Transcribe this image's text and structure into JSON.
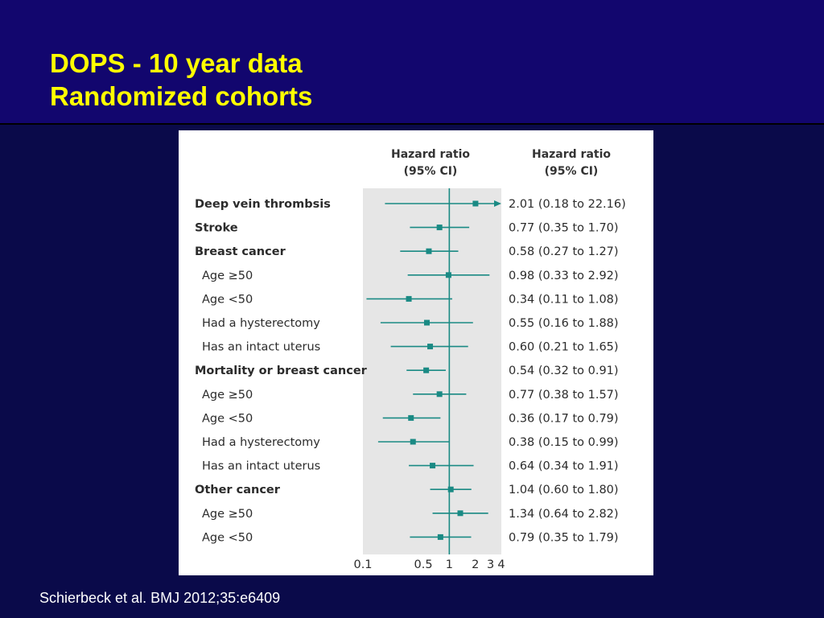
{
  "slide": {
    "title_line1": "DOPS - 10 year data",
    "title_line2": "Randomized cohorts",
    "citation": "Schierbeck et al. BMJ 2012;35:e6409",
    "colors": {
      "background": "#0a0a4a",
      "header": "#12066e",
      "title": "#ffff00",
      "marker": "#1a8a84",
      "panel": "#e6e6e6"
    }
  },
  "chart_data": {
    "type": "forest",
    "header_plot": [
      "Hazard ratio",
      "(95% CI)"
    ],
    "header_values": [
      "Hazard ratio",
      "(95% CI)"
    ],
    "x_scale": "log",
    "xlim": [
      0.1,
      4
    ],
    "reference_line": 1,
    "x_ticks": [
      0.1,
      0.5,
      1,
      2,
      3,
      4
    ],
    "x_tick_labels": [
      "0.1",
      "0.5",
      "1",
      "2",
      "3",
      "4"
    ],
    "rows": [
      {
        "label": "Deep vein thrombsis",
        "bold": true,
        "hr": 2.01,
        "lo": 0.18,
        "hi": 22.16,
        "ci_text": "2.01 (0.18 to 22.16)",
        "arrow": true
      },
      {
        "label": "Stroke",
        "bold": true,
        "hr": 0.77,
        "lo": 0.35,
        "hi": 1.7,
        "ci_text": "0.77 (0.35 to 1.70)"
      },
      {
        "label": "Breast cancer",
        "bold": true,
        "hr": 0.58,
        "lo": 0.27,
        "hi": 1.27,
        "ci_text": "0.58 (0.27 to 1.27)"
      },
      {
        "label": "Age ≥50",
        "bold": false,
        "hr": 0.98,
        "lo": 0.33,
        "hi": 2.92,
        "ci_text": "0.98 (0.33 to 2.92)"
      },
      {
        "label": "Age <50",
        "bold": false,
        "hr": 0.34,
        "lo": 0.11,
        "hi": 1.08,
        "ci_text": "0.34 (0.11 to 1.08)"
      },
      {
        "label": "Had a hysterectomy",
        "bold": false,
        "hr": 0.55,
        "lo": 0.16,
        "hi": 1.88,
        "ci_text": "0.55 (0.16 to 1.88)"
      },
      {
        "label": "Has an intact uterus",
        "bold": false,
        "hr": 0.6,
        "lo": 0.21,
        "hi": 1.65,
        "ci_text": "0.60 (0.21 to 1.65)"
      },
      {
        "label": "Mortality or breast cancer",
        "bold": true,
        "hr": 0.54,
        "lo": 0.32,
        "hi": 0.91,
        "ci_text": "0.54 (0.32 to 0.91)"
      },
      {
        "label": "Age ≥50",
        "bold": false,
        "hr": 0.77,
        "lo": 0.38,
        "hi": 1.57,
        "ci_text": "0.77 (0.38 to 1.57)"
      },
      {
        "label": "Age <50",
        "bold": false,
        "hr": 0.36,
        "lo": 0.17,
        "hi": 0.79,
        "ci_text": "0.36 (0.17 to 0.79)"
      },
      {
        "label": "Had a hysterectomy",
        "bold": false,
        "hr": 0.38,
        "lo": 0.15,
        "hi": 0.99,
        "ci_text": "0.38 (0.15 to 0.99)"
      },
      {
        "label": "Has an intact uterus",
        "bold": false,
        "hr": 0.64,
        "lo": 0.34,
        "hi": 1.91,
        "ci_text": "0.64 (0.34 to 1.91)"
      },
      {
        "label": "Other cancer",
        "bold": true,
        "hr": 1.04,
        "lo": 0.6,
        "hi": 1.8,
        "ci_text": "1.04 (0.60 to 1.80)"
      },
      {
        "label": "Age ≥50",
        "bold": false,
        "hr": 1.34,
        "lo": 0.64,
        "hi": 2.82,
        "ci_text": "1.34 (0.64 to 2.82)"
      },
      {
        "label": "Age <50",
        "bold": false,
        "hr": 0.79,
        "lo": 0.35,
        "hi": 1.79,
        "ci_text": "0.79 (0.35 to 1.79)"
      }
    ]
  }
}
